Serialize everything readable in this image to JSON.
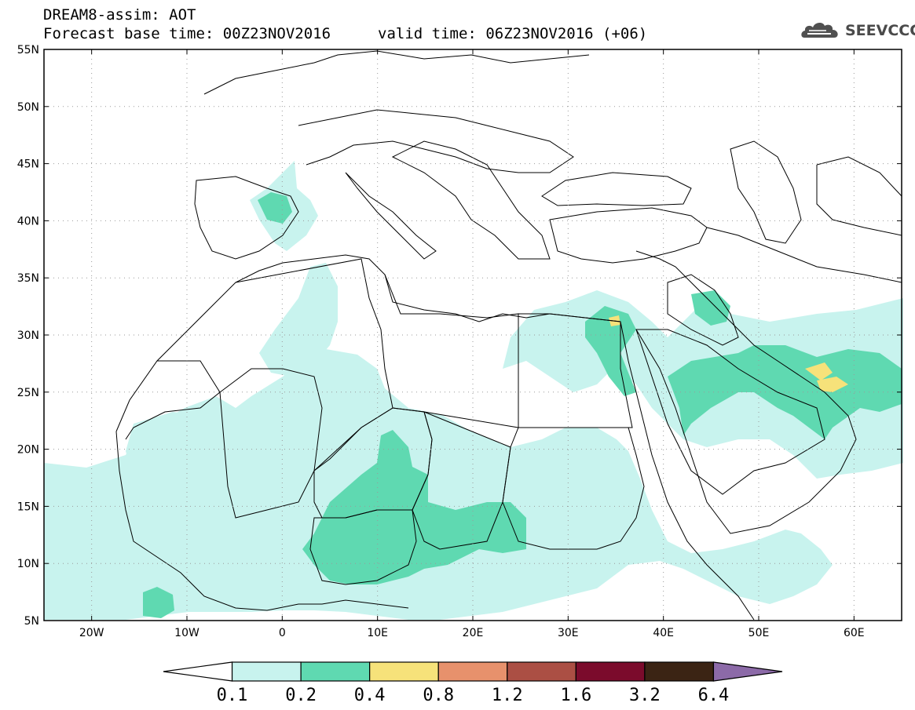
{
  "header": {
    "line1": "DREAM8-assim: AOT",
    "base_time": "Forecast base time: 00Z23NOV2016",
    "valid_time": "valid time: 06Z23NOV2016 (+06)"
  },
  "logo": {
    "text": "SEEVCCC",
    "icon": "cloud-icon"
  },
  "map": {
    "lon_ticks": [
      "20W",
      "10W",
      "0",
      "10E",
      "20E",
      "30E",
      "40E",
      "50E",
      "60E"
    ],
    "lat_ticks": [
      "5N",
      "10N",
      "15N",
      "20N",
      "25N",
      "30N",
      "35N",
      "40N",
      "45N",
      "50N",
      "55N"
    ],
    "lon_range": [
      -25,
      65
    ],
    "lat_range": [
      5,
      55
    ],
    "grid": "dotted"
  },
  "colorbar": {
    "labels": [
      "0.1",
      "0.2",
      "0.4",
      "0.8",
      "1.2",
      "1.6",
      "3.2",
      "6.4"
    ],
    "colors": [
      "#c8f3ee",
      "#5fd9b1",
      "#f6e27a",
      "#e7916c",
      "#ab4f44",
      "#7b0b2c",
      "#3b2414",
      "#8c6aa8"
    ],
    "extend": "both"
  }
}
